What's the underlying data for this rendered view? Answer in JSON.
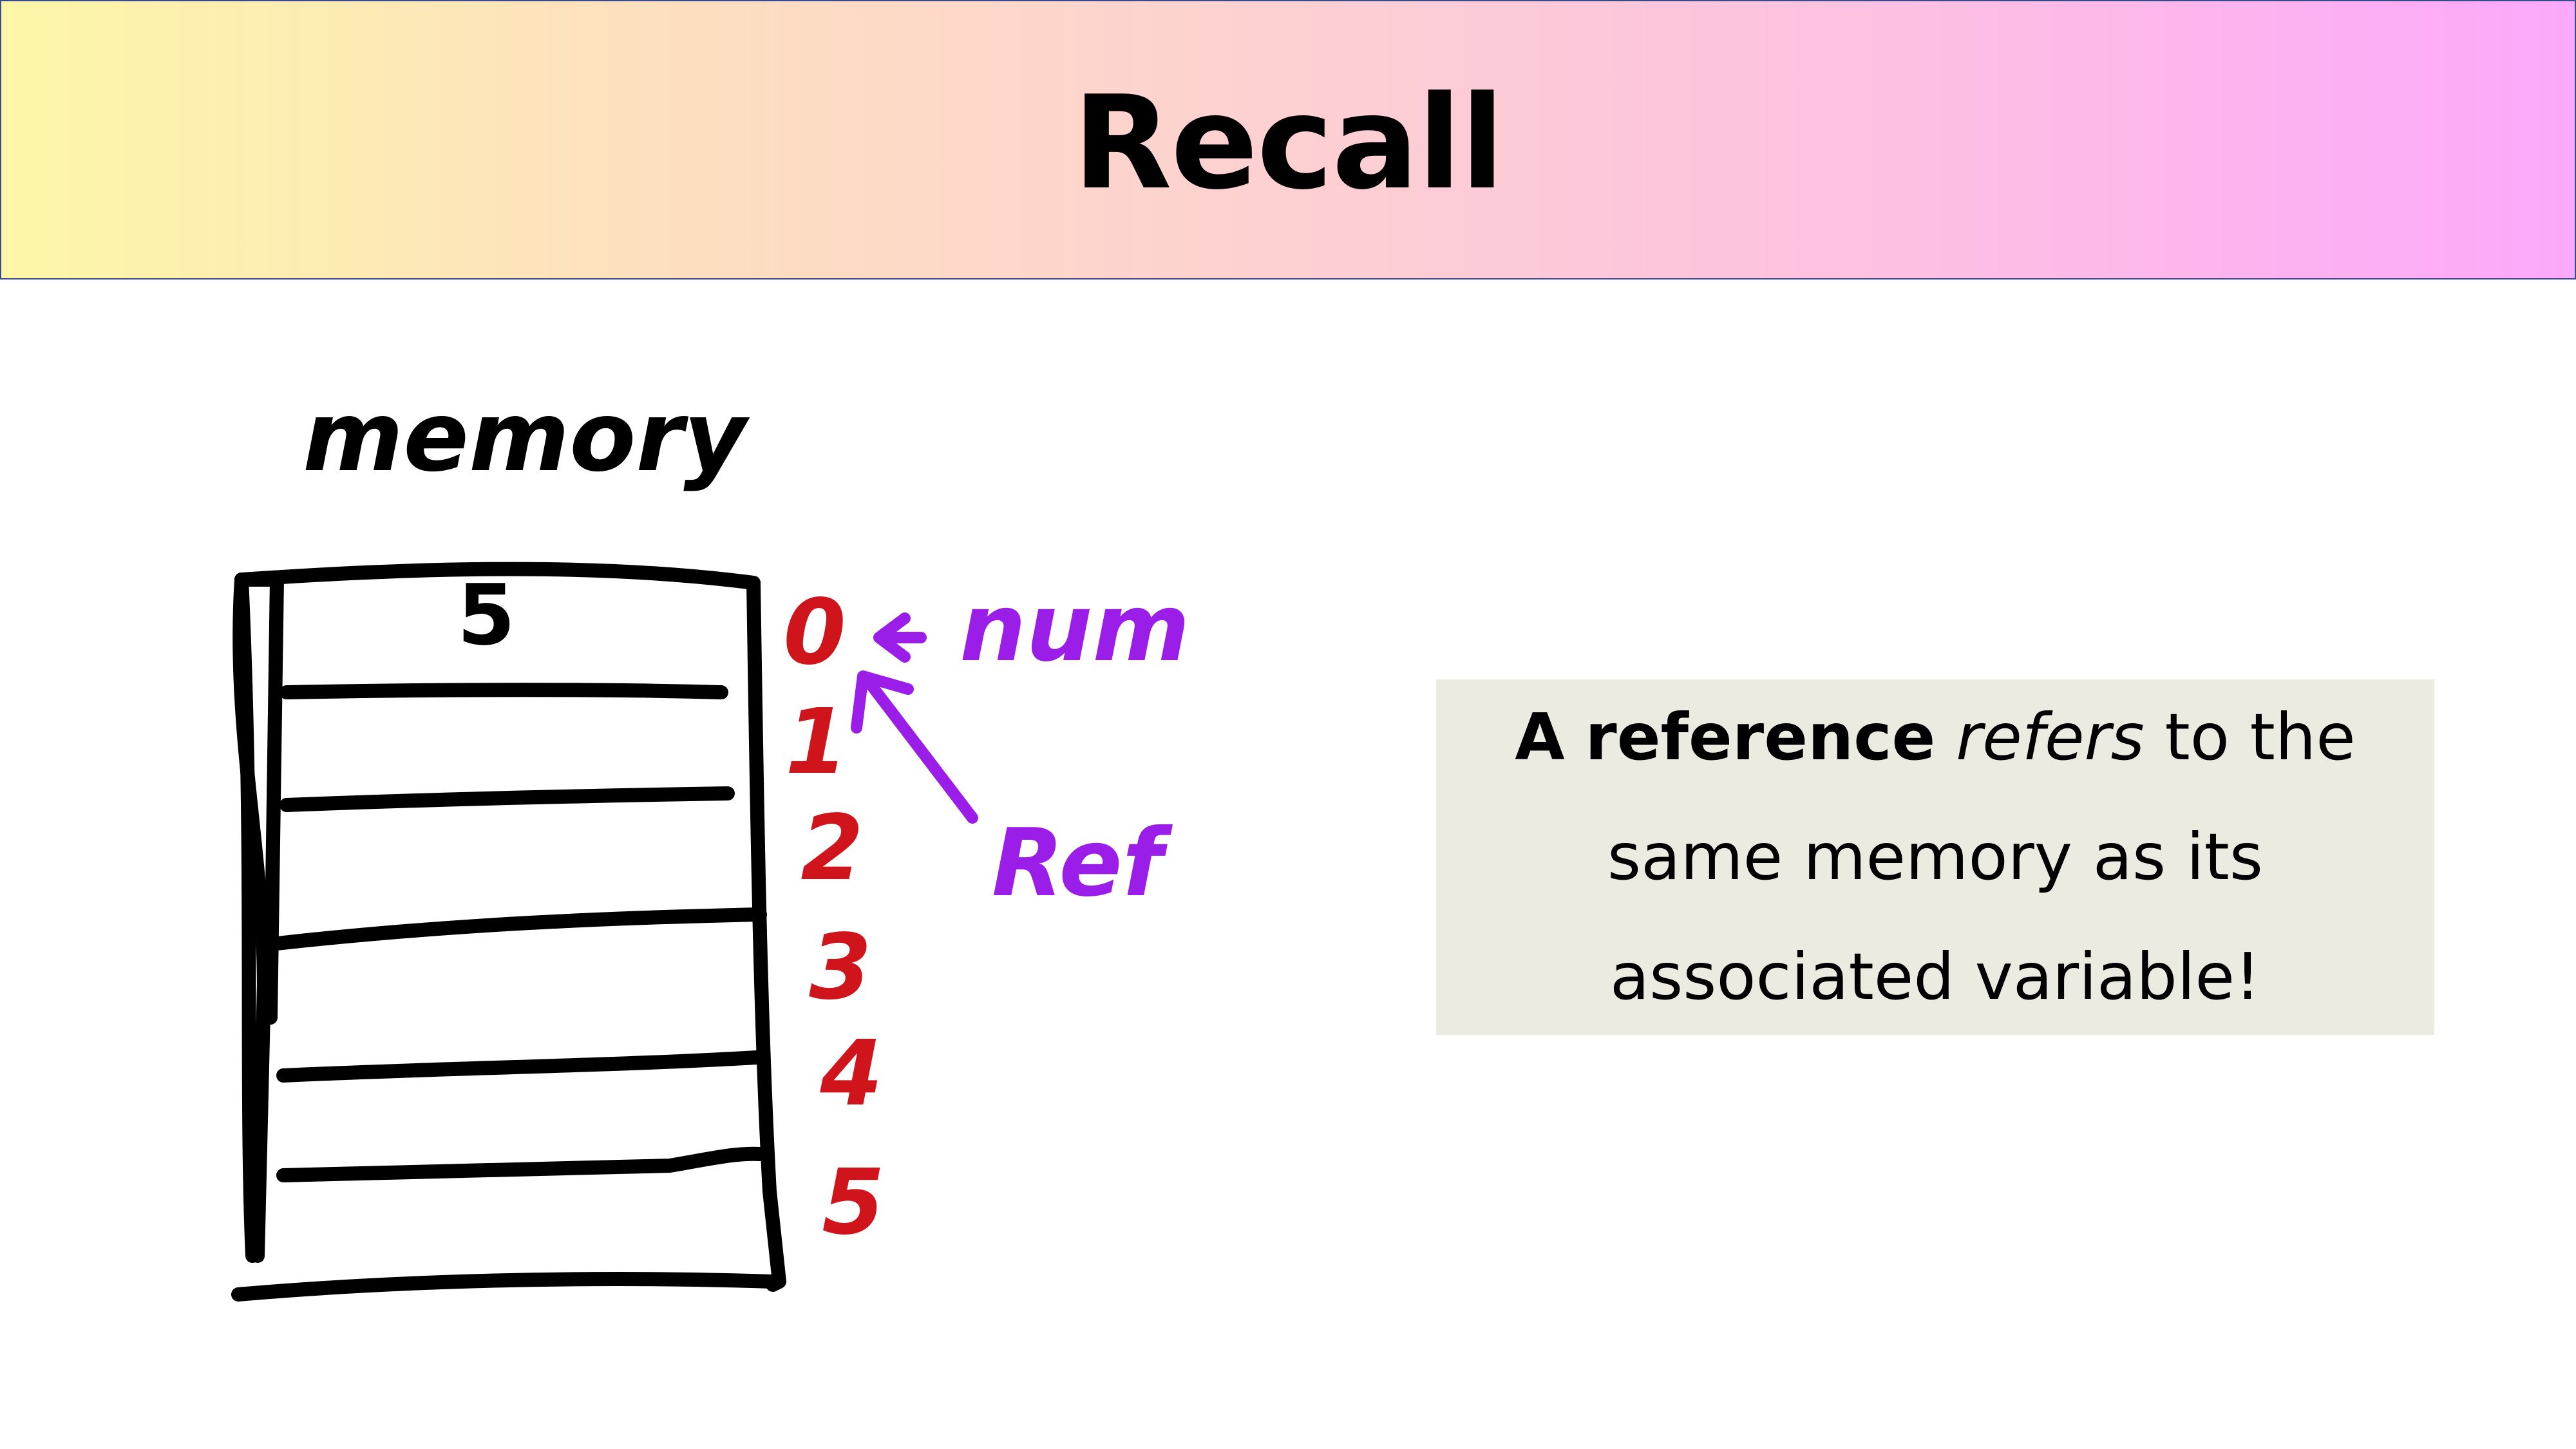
{
  "slide": {
    "title": "Recall"
  },
  "diagram": {
    "label": "memory",
    "stored_value": "5",
    "addresses": [
      "0",
      "1",
      "2",
      "3",
      "4",
      "5"
    ],
    "variable_label": "num",
    "reference_label": "Ref",
    "colors": {
      "ink": "#000000",
      "addresses": "#d0141b",
      "pointers": "#9b1ee8"
    }
  },
  "callout": {
    "part1": "A",
    "part2": "reference",
    "part3": "refers",
    "part4": "to the same memory as its associated variable!"
  },
  "colors": {
    "header_gradient_start": "#fdf7a8",
    "header_gradient_end": "#fca8fb",
    "callout_bg": "#ecebe1"
  }
}
